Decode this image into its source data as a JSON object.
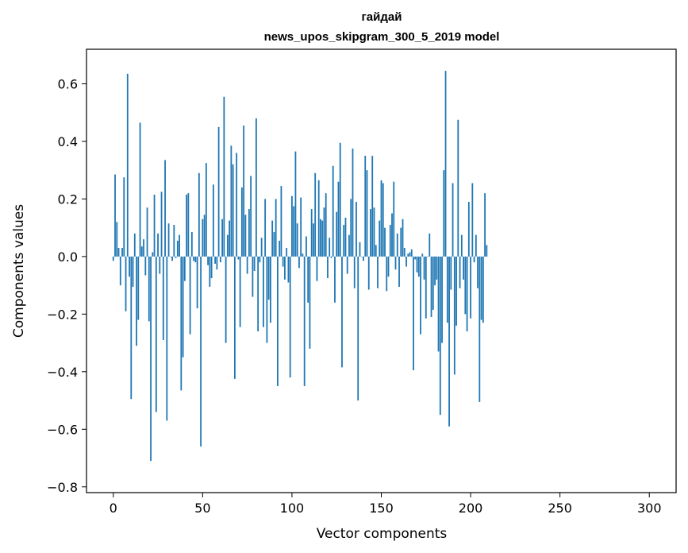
{
  "chart_data": {
    "type": "bar",
    "title_line1": "гайдай",
    "title_line2": "news_upos_skipgram_300_5_2019 model",
    "xlabel": "Vector components",
    "ylabel": "Components values",
    "xlim": [
      -15,
      315
    ],
    "ylim": [
      -0.82,
      0.72
    ],
    "xticks": [
      0,
      50,
      100,
      150,
      200,
      250,
      300
    ],
    "xtick_labels": [
      "0",
      "50",
      "100",
      "150",
      "200",
      "250",
      "300"
    ],
    "yticks": [
      -0.8,
      -0.6,
      -0.4,
      -0.2,
      0.0,
      0.2,
      0.4,
      0.6
    ],
    "ytick_labels": [
      "−0.8",
      "−0.6",
      "−0.4",
      "−0.2",
      "0.0",
      "0.2",
      "0.4",
      "0.6"
    ],
    "bar_color": "#1f77b4",
    "grid": false,
    "values": [
      -0.015,
      0.285,
      0.12,
      0.03,
      -0.1,
      0.03,
      0.275,
      -0.19,
      0.635,
      -0.07,
      -0.495,
      -0.105,
      0.08,
      -0.31,
      -0.22,
      0.465,
      0.035,
      0.06,
      -0.065,
      0.17,
      -0.225,
      -0.71,
      0.015,
      0.215,
      -0.54,
      0.08,
      -0.06,
      0.225,
      -0.29,
      0.335,
      -0.57,
      0.115,
      0.0,
      -0.015,
      0.11,
      -0.005,
      0.055,
      0.075,
      -0.465,
      -0.35,
      -0.085,
      0.215,
      0.22,
      -0.27,
      0.085,
      -0.015,
      -0.02,
      -0.18,
      0.29,
      -0.66,
      0.13,
      0.145,
      0.325,
      -0.03,
      -0.105,
      -0.075,
      0.25,
      -0.025,
      -0.045,
      0.45,
      -0.02,
      0.13,
      0.555,
      -0.3,
      0.075,
      0.125,
      0.385,
      0.32,
      -0.425,
      0.36,
      -0.01,
      -0.245,
      0.24,
      0.455,
      0.145,
      -0.06,
      0.165,
      0.28,
      -0.14,
      -0.05,
      0.48,
      -0.26,
      -0.02,
      0.065,
      -0.245,
      0.2,
      -0.3,
      -0.15,
      -0.23,
      0.125,
      0.085,
      0.2,
      -0.45,
      0.055,
      0.245,
      -0.035,
      -0.08,
      0.03,
      -0.09,
      -0.42,
      0.21,
      0.175,
      0.365,
      0.115,
      -0.04,
      0.205,
      0.01,
      -0.45,
      0.07,
      -0.16,
      -0.32,
      0.165,
      0.115,
      0.29,
      -0.085,
      0.265,
      0.13,
      0.125,
      0.17,
      0.22,
      -0.075,
      0.065,
      -0.005,
      0.315,
      -0.16,
      0.155,
      0.26,
      0.395,
      -0.385,
      0.11,
      0.135,
      -0.06,
      0.075,
      0.2,
      0.375,
      -0.11,
      0.19,
      -0.5,
      0.05,
      0.0,
      -0.015,
      0.35,
      0.3,
      -0.115,
      0.165,
      0.35,
      0.17,
      0.04,
      -0.11,
      0.125,
      0.265,
      0.255,
      0.1,
      -0.12,
      -0.07,
      0.11,
      0.15,
      0.26,
      -0.045,
      0.08,
      -0.105,
      0.1,
      0.13,
      0.03,
      -0.035,
      0.01,
      0.015,
      0.025,
      -0.395,
      -0.01,
      -0.055,
      -0.07,
      -0.27,
      0.01,
      -0.08,
      -0.215,
      0.0,
      0.08,
      -0.21,
      -0.185,
      -0.1,
      -0.08,
      -0.33,
      -0.55,
      -0.3,
      0.3,
      0.645,
      -0.23,
      -0.59,
      -0.115,
      0.255,
      -0.41,
      -0.24,
      0.475,
      -0.11,
      0.075,
      -0.08,
      -0.2,
      -0.26,
      0.19,
      -0.215,
      0.255,
      -0.02,
      0.075,
      -0.11,
      -0.505,
      -0.22,
      -0.23,
      0.22,
      0.04
    ]
  }
}
